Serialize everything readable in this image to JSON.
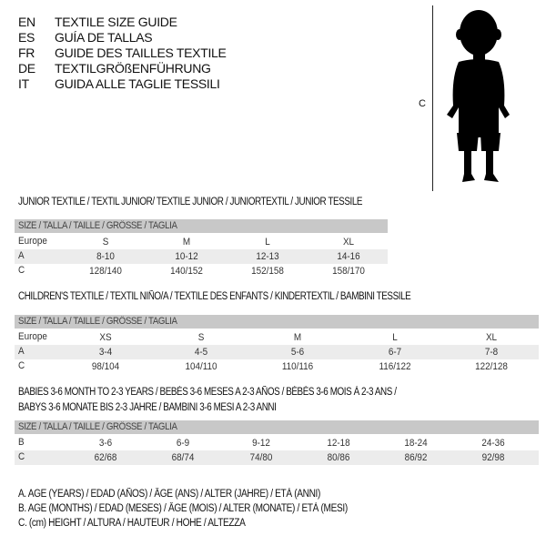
{
  "languages": [
    {
      "code": "EN",
      "title": "TEXTILE SIZE GUIDE"
    },
    {
      "code": "ES",
      "title": "GUÍA DE TALLAS"
    },
    {
      "code": "FR",
      "title": "GUIDE DES TAILLES TEXTILE"
    },
    {
      "code": "DE",
      "title": "TEXTILGRÖßENFÜHRUNG"
    },
    {
      "code": "IT",
      "title": "GUIDA ALLE TAGLIE TESSILI"
    }
  ],
  "figure": {
    "label": "C",
    "icon": "child-silhouette-icon"
  },
  "tables": [
    {
      "title": "JUNIOR TEXTILE / TEXTIL JUNIOR/ TEXTILE JUNIOR / JUNIORTEXTIL / JUNIOR TESSILE",
      "header": "SIZE / TALLA / TAILLE / GRÖSSE / TAGLIA",
      "rows": [
        {
          "label": "Europe",
          "cells": [
            "S",
            "M",
            "L",
            "XL"
          ]
        },
        {
          "label": "A",
          "cells": [
            "8-10",
            "10-12",
            "12-13",
            "14-16"
          ]
        },
        {
          "label": "C",
          "cells": [
            "128/140",
            "140/152",
            "152/158",
            "158/170"
          ]
        }
      ]
    },
    {
      "title": "CHILDREN'S TEXTILE / TEXTIL NIÑO/A / TEXTILE DES ENFANTS / KINDERTEXTIL / BAMBINI TESSILE",
      "header": "SIZE / TALLA / TAILLE / GRÖSSE / TAGLIA",
      "rows": [
        {
          "label": "Europe",
          "cells": [
            "XS",
            "S",
            "M",
            "L",
            "XL"
          ]
        },
        {
          "label": "A",
          "cells": [
            "3-4",
            "4-5",
            "5-6",
            "6-7",
            "7-8"
          ]
        },
        {
          "label": "C",
          "cells": [
            "98/104",
            "104/110",
            "110/116",
            "116/122",
            "122/128"
          ]
        }
      ]
    },
    {
      "title": "BABIES 3-6 MONTH TO 2-3 YEARS / BEBÉS 3-6 MESES A 2-3 AÑOS / BÉBÉS 3-6 MOIS À 2-3 ANS /",
      "title2": "BABYS 3-6 MONATE BIS 2-3 JAHRE / BAMBINI 3-6 MESI A 2-3 ANNI",
      "header": "SIZE / TALLA / TAILLE / GRÖSSE / TAGLIA",
      "rows": [
        {
          "label": "B",
          "cells": [
            "3-6",
            "6-9",
            "9-12",
            "12-18",
            "18-24",
            "24-36"
          ]
        },
        {
          "label": "C",
          "cells": [
            "62/68",
            "68/74",
            "74/80",
            "80/86",
            "86/92",
            "92/98"
          ]
        }
      ]
    }
  ],
  "legend": [
    "A. AGE (YEARS) / EDAD (AÑOS) / ÂGE (ANS) / ALTER (JAHRE) / ETÀ (ANNI)",
    "B. AGE (MONTHS) / EDAD (MESES) / ÂGE (MOIS) / ALTER (MONATE) / ETÀ (MESI)",
    "C. (cm) HEIGHT / ALTURA / HAUTEUR / HÖHE / ALTEZZA"
  ]
}
